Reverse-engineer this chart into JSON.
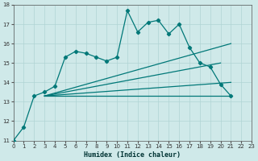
{
  "xlabel": "Humidex (Indice chaleur)",
  "xlim": [
    0,
    23
  ],
  "ylim": [
    11,
    18
  ],
  "yticks": [
    11,
    12,
    13,
    14,
    15,
    16,
    17,
    18
  ],
  "xticks": [
    0,
    1,
    2,
    3,
    4,
    5,
    6,
    7,
    8,
    9,
    10,
    11,
    12,
    13,
    14,
    15,
    16,
    17,
    18,
    19,
    20,
    21,
    22,
    23
  ],
  "bg_color": "#cfe9e9",
  "grid_color": "#b0d4d4",
  "line_color": "#007878",
  "line1_x": [
    0,
    1,
    2,
    3,
    4,
    5,
    6,
    7,
    8,
    9,
    10,
    11,
    12,
    13,
    14,
    15,
    16,
    17,
    18,
    19,
    20,
    21
  ],
  "line1_y": [
    11.0,
    11.7,
    13.3,
    13.5,
    13.8,
    15.3,
    15.6,
    15.5,
    15.3,
    15.1,
    15.3,
    17.7,
    16.6,
    17.1,
    17.2,
    16.5,
    17.0,
    15.8,
    15.0,
    14.8,
    13.9,
    13.3
  ],
  "line2_x": [
    3,
    21
  ],
  "line2_y": [
    13.3,
    13.3
  ],
  "line3_x": [
    3,
    20
  ],
  "line3_y": [
    13.3,
    15.0
  ],
  "line4_x": [
    3,
    21
  ],
  "line4_y": [
    13.3,
    16.0
  ],
  "line5_x": [
    3,
    21
  ],
  "line5_y": [
    13.3,
    14.0
  ]
}
